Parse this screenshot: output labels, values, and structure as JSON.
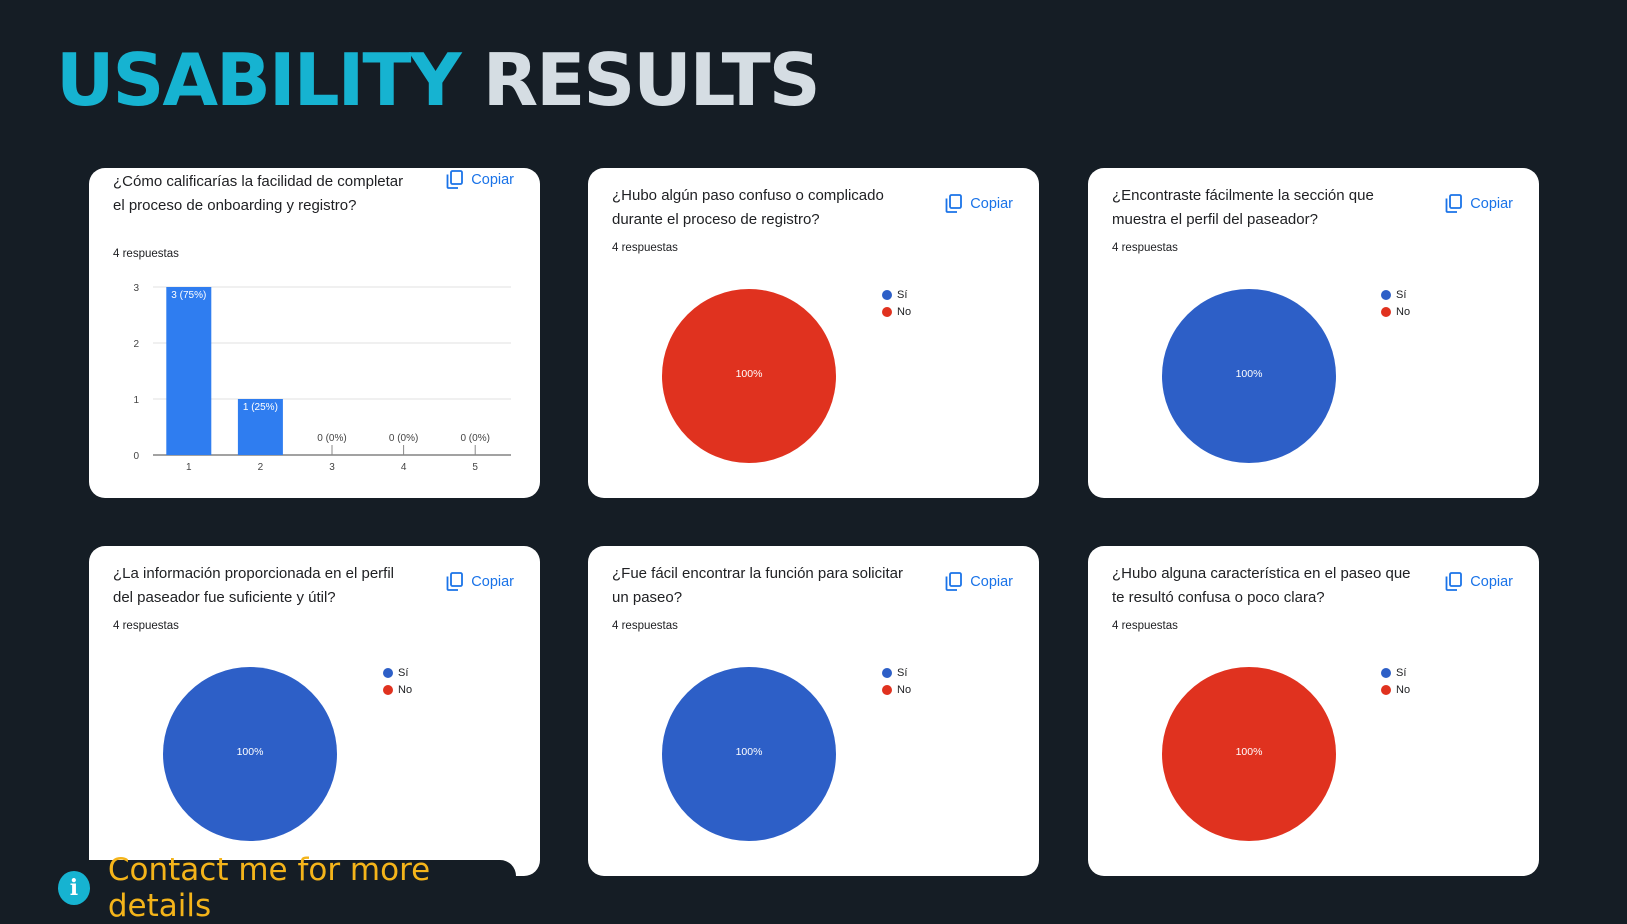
{
  "title": {
    "accent": "USABILITY",
    "rest": "RESULTS"
  },
  "copy_label": "Copiar",
  "colors": {
    "blue": "#2d5fc7",
    "red": "#e0321f",
    "bar": "#2f7df0",
    "link": "#1a73e8"
  },
  "chart_data": [
    {
      "type": "bar",
      "question": "¿Cómo calificarías la facilidad de completar el proceso de onboarding y registro?",
      "responses": "4 respuestas",
      "categories": [
        "1",
        "2",
        "3",
        "4",
        "5"
      ],
      "values": [
        3,
        1,
        0,
        0,
        0
      ],
      "data_labels": [
        "3 (75%)",
        "1 (25%)",
        "0 (0%)",
        "0 (0%)",
        "0 (0%)"
      ],
      "ylim": [
        0,
        3
      ],
      "yticks": [
        "0",
        "1",
        "2",
        "3"
      ]
    },
    {
      "type": "pie",
      "question": "¿Hubo algún paso confuso o complicado durante el proceso de registro?",
      "responses": "4 respuestas",
      "legend": [
        "Sí",
        "No"
      ],
      "values": [
        0,
        100
      ],
      "label": "100%"
    },
    {
      "type": "pie",
      "question": "¿Encontraste fácilmente la sección que muestra el perfil del paseador?",
      "responses": "4 respuestas",
      "legend": [
        "Sí",
        "No"
      ],
      "values": [
        100,
        0
      ],
      "label": "100%"
    },
    {
      "type": "pie",
      "question": "¿La información proporcionada en el perfil del paseador fue suficiente y útil?",
      "responses": "4 respuestas",
      "legend": [
        "Sí",
        "No"
      ],
      "values": [
        100,
        0
      ],
      "label": "100%"
    },
    {
      "type": "pie",
      "question": "¿Fue fácil encontrar la función para solicitar un paseo?",
      "responses": "4 respuestas",
      "legend": [
        "Sí",
        "No"
      ],
      "values": [
        100,
        0
      ],
      "label": "100%"
    },
    {
      "type": "pie",
      "question": "¿Hubo alguna característica en el paseo que te resultó confusa o poco clara?",
      "responses": "4 respuestas",
      "legend": [
        "Sí",
        "No"
      ],
      "values": [
        0,
        100
      ],
      "label": "100%"
    }
  ],
  "footer": {
    "icon": "info-icon",
    "text": "Contact me for more details"
  }
}
